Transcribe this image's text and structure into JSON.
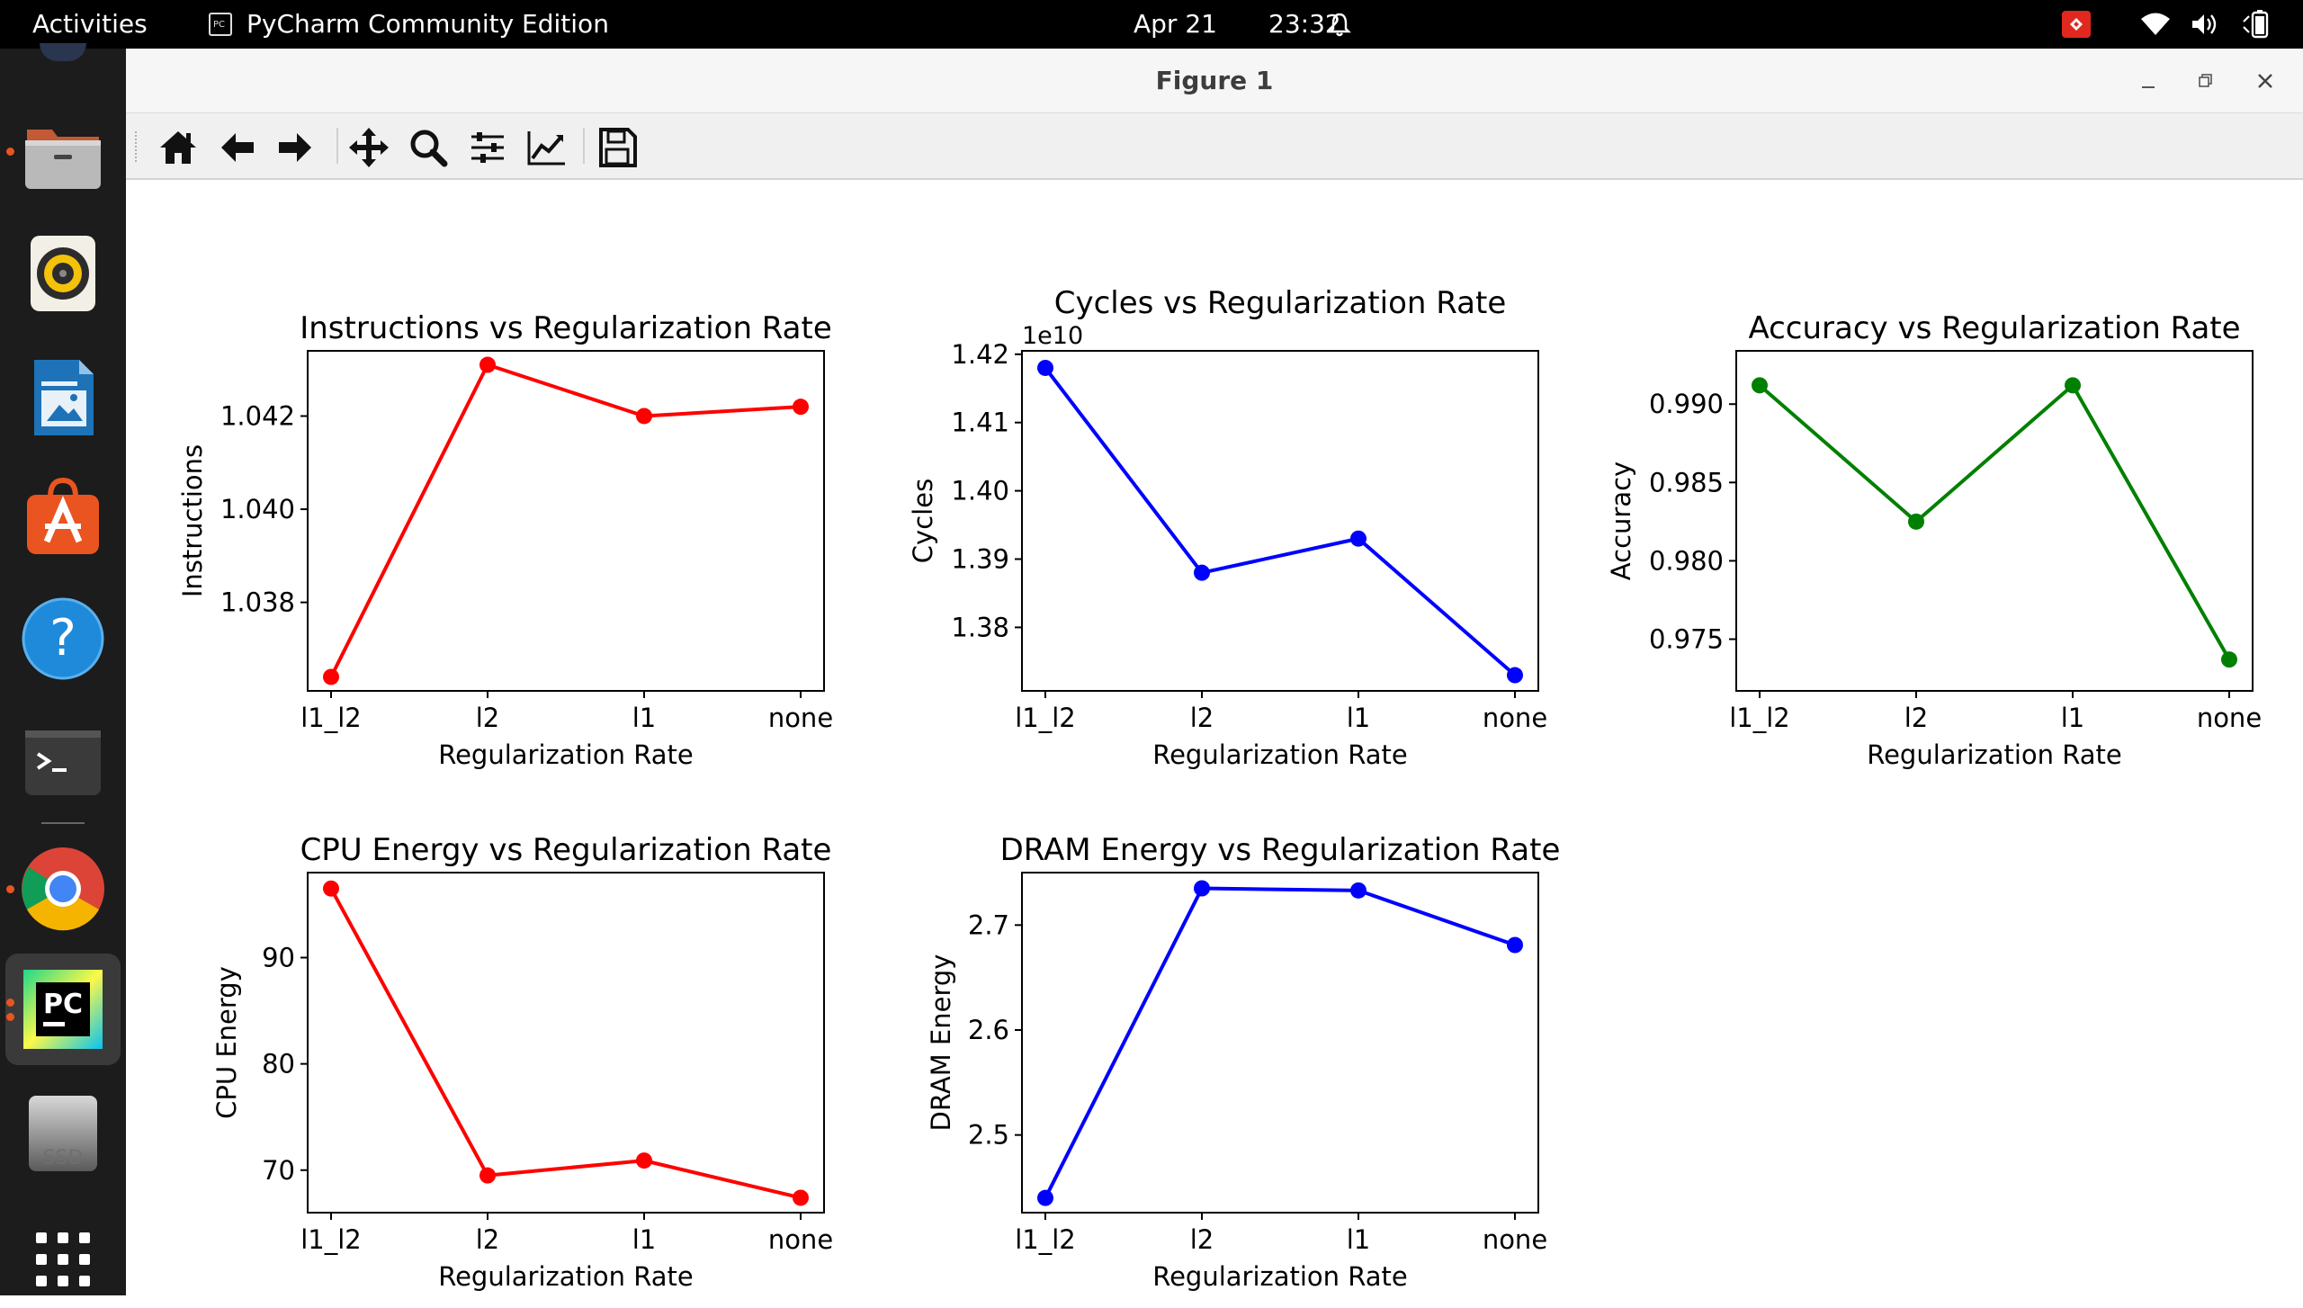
{
  "topbar": {
    "activities": "Activities",
    "app_name": "PyCharm Community Edition",
    "app_icon": "pycharm-small-icon",
    "date": "Apr 21",
    "time": "23:32",
    "icons": [
      "bell-icon",
      "red-indicator-icon",
      "wifi-icon",
      "volume-icon",
      "battery-icon"
    ]
  },
  "dock": {
    "items": [
      "files-icon",
      "rhythmbox-icon",
      "libreoffice-impress-icon",
      "app-center-icon",
      "help-icon",
      "terminal-icon",
      "chrome-icon",
      "pycharm-icon",
      "ssd-drive-icon",
      "show-apps-icon"
    ],
    "ssd_label": "SSD",
    "pycharm_label": "PC"
  },
  "window": {
    "title": "Figure 1",
    "toolbar": [
      "home-icon",
      "back-arrow-icon",
      "forward-arrow-icon",
      "pan-icon",
      "zoom-icon",
      "configure-subplots-icon",
      "edit-axis-icon",
      "save-icon"
    ]
  },
  "chart_data": [
    {
      "type": "line",
      "title": "Instructions vs Regularization Rate",
      "xlabel": "Regularization Rate",
      "ylabel": "Instructions",
      "categories": [
        "l1_l2",
        "l2",
        "l1",
        "none"
      ],
      "values": [
        1.0364,
        1.0431,
        1.042,
        1.0422
      ],
      "yticks": [
        "1.038",
        "1.040",
        "1.042"
      ],
      "ylim": [
        1.0361,
        1.0434
      ],
      "color": "#ff0000"
    },
    {
      "type": "line",
      "title": "Cycles vs Regularization Rate",
      "xlabel": "Regularization Rate",
      "ylabel": "Cycles",
      "offset_label": "1e10",
      "categories": [
        "l1_l2",
        "l2",
        "l1",
        "none"
      ],
      "values": [
        1.418,
        1.388,
        1.393,
        1.373
      ],
      "yticks": [
        "1.38",
        "1.39",
        "1.40",
        "1.41",
        "1.42"
      ],
      "ylim": [
        1.3707,
        1.4205
      ],
      "color": "#0000ff"
    },
    {
      "type": "line",
      "title": "Accuracy vs Regularization Rate",
      "xlabel": "Regularization Rate",
      "ylabel": "Accuracy",
      "categories": [
        "l1_l2",
        "l2",
        "l1",
        "none"
      ],
      "values": [
        0.9912,
        0.9825,
        0.9912,
        0.9737
      ],
      "yticks": [
        "0.975",
        "0.980",
        "0.985",
        "0.990"
      ],
      "ylim": [
        0.9717,
        0.9934
      ],
      "color": "#008000"
    },
    {
      "type": "line",
      "title": "CPU Energy vs Regularization Rate",
      "xlabel": "Regularization Rate",
      "ylabel": "CPU Energy",
      "categories": [
        "l1_l2",
        "l2",
        "l1",
        "none"
      ],
      "values": [
        96.5,
        69.5,
        70.9,
        67.4
      ],
      "yticks": [
        "70",
        "80",
        "90"
      ],
      "ylim": [
        66.0,
        98.0
      ],
      "color": "#ff0000"
    },
    {
      "type": "line",
      "title": "DRAM Energy vs Regularization Rate",
      "xlabel": "Regularization Rate",
      "ylabel": "DRAM Energy",
      "categories": [
        "l1_l2",
        "l2",
        "l1",
        "none"
      ],
      "values": [
        2.44,
        2.735,
        2.733,
        2.681
      ],
      "yticks": [
        "2.5",
        "2.6",
        "2.7"
      ],
      "ylim": [
        2.426,
        2.75
      ],
      "color": "#0000ff"
    }
  ]
}
